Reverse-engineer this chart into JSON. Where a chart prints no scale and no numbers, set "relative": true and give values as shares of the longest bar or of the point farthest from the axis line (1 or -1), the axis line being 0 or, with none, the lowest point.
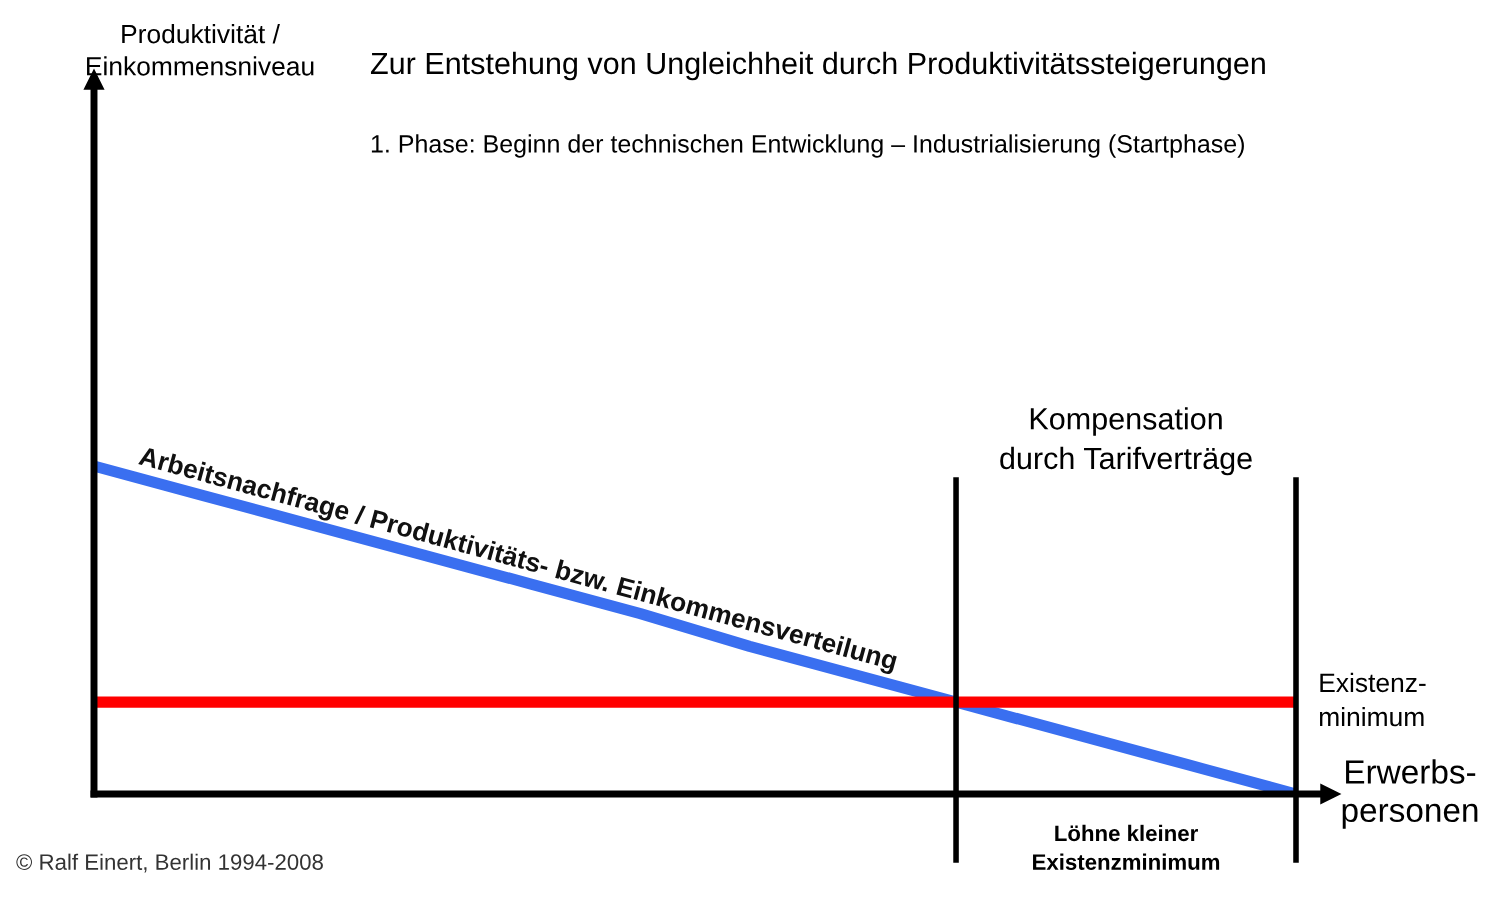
{
  "chart_data": {
    "type": "line",
    "relative": true,
    "title": "Zur Entstehung von Ungleichheit durch Produktivitätssteigerungen",
    "subtitle": "1. Phase: Beginn der technischen Entwicklung – Industrialisierung (Startphase)",
    "xlabel": "Erwerbs-\npersonen",
    "categories": [
      null,
      null,
      null,
      null,
      null,
      null,
      null,
      null,
      null,
      null,
      null,
      null
    ],
    "series": [
      {
        "name": "Arbeitsnachfrage / Produktivitäts- bzw. Einkommensverteilung",
        "color": "#3a6ff0",
        "values": [
          1,
          0.91,
          0.82,
          0.73,
          0.64,
          0.55,
          0.45,
          0.36,
          0.27,
          0.18,
          0.09,
          0
        ]
      },
      {
        "name": "Existenz-\nminimum",
        "color": "#ff0000",
        "values": [
          0.28,
          0.28,
          0.28,
          0.28,
          0.28,
          0.28,
          0.28,
          0.28,
          0.28,
          0.28,
          0.28,
          0.28
        ]
      }
    ],
    "annotations": [
      "Kompensation\ndurch Tarifverträge",
      "Löhne kleiner\nExistenzminimum",
      "© Ralf Einert, Berlin 1994-2008",
      "Produktivität /\nEinkommensniveau"
    ]
  }
}
